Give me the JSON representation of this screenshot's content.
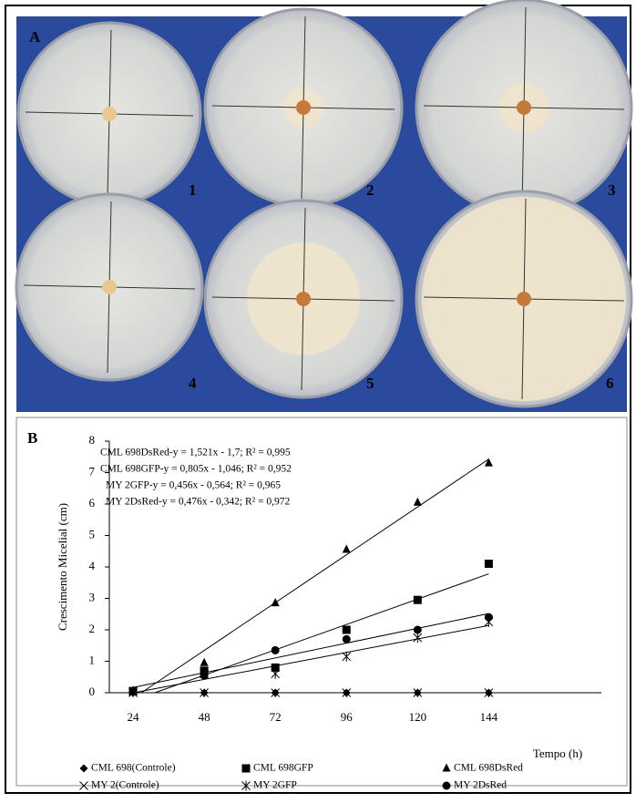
{
  "panel_a": {
    "label": "A",
    "plates": [
      "1",
      "2",
      "3",
      "4",
      "5",
      "6"
    ]
  },
  "chart_data": {
    "type": "scatter",
    "panel_label": "B",
    "x": [
      24,
      48,
      72,
      96,
      120,
      144
    ],
    "xlabel": "Tempo (h)",
    "ylabel": "Crescimento Micelial (cm)",
    "xlim": [
      16,
      182
    ],
    "ylim": [
      0,
      8
    ],
    "xticks": [
      24,
      48,
      72,
      96,
      120,
      144
    ],
    "yticks": [
      0,
      1,
      2,
      3,
      4,
      5,
      6,
      7,
      8
    ],
    "annotations": [
      "CML 698DsRed-y = 1,521x - 1,7; R² = 0,995",
      "CML 698GFP-y = 0,805x - 1,046; R² = 0,952",
      "MY 2GFP-y = 0,456x - 0,564; R² = 0,965",
      "MY 2DsRed-y = 0,476x - 0,342; R² = 0,972"
    ],
    "series": [
      {
        "name": "CML 698(Controle)",
        "color": "#000000",
        "marker": "diamond",
        "trendline": false,
        "values": [
          0,
          0,
          0,
          0,
          0,
          0
        ]
      },
      {
        "name": "CML 698GFP",
        "color": "#000000",
        "marker": "square",
        "trendline": true,
        "values": [
          0.05,
          0.7,
          0.8,
          2.0,
          2.95,
          4.1
        ]
      },
      {
        "name": "CML 698DsRed",
        "color": "#000000",
        "marker": "triangle",
        "trendline": true,
        "values": [
          0.05,
          0.95,
          2.85,
          4.55,
          6.05,
          7.3
        ]
      },
      {
        "name": "MY 2(Controle)",
        "color": "#000000",
        "marker": "cross",
        "trendline": false,
        "values": [
          0,
          0,
          0,
          0,
          0,
          0
        ]
      },
      {
        "name": "MY 2GFP",
        "color": "#000000",
        "marker": "star",
        "trendline": true,
        "values": [
          0.05,
          0.6,
          0.6,
          1.15,
          1.75,
          2.25
        ]
      },
      {
        "name": "MY 2DsRed",
        "color": "#000000",
        "marker": "circle",
        "trendline": true,
        "values": [
          0.05,
          0.55,
          1.35,
          1.7,
          2.0,
          2.4
        ]
      }
    ]
  }
}
